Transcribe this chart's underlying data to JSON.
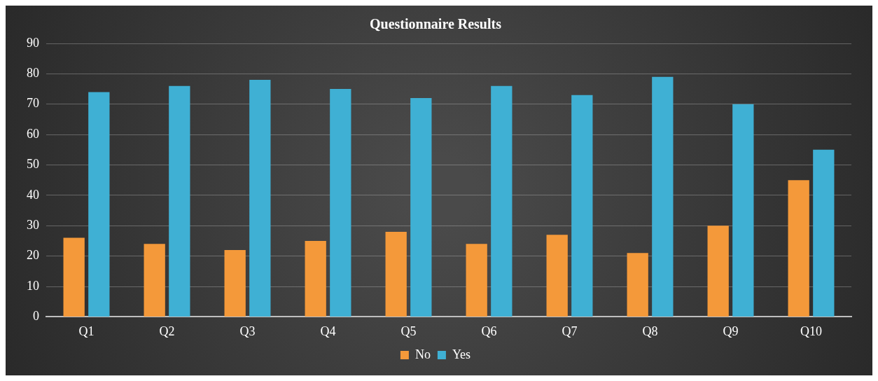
{
  "chart_data": {
    "type": "bar",
    "title": "Questionnaire Results",
    "categories": [
      "Q1",
      "Q2",
      "Q3",
      "Q4",
      "Q5",
      "Q6",
      "Q7",
      "Q8",
      "Q9",
      "Q10"
    ],
    "series": [
      {
        "name": "No",
        "color": "#f4993a",
        "values": [
          26,
          24,
          22,
          25,
          28,
          24,
          27,
          21,
          30,
          45
        ]
      },
      {
        "name": "Yes",
        "color": "#3fb0d4",
        "values": [
          74,
          76,
          78,
          75,
          72,
          76,
          73,
          79,
          70,
          55
        ]
      }
    ],
    "ylim": [
      0,
      90
    ],
    "yticks": [
      0,
      10,
      20,
      30,
      40,
      50,
      60,
      70,
      80,
      90
    ],
    "grid": "y",
    "legend": "bottom"
  }
}
